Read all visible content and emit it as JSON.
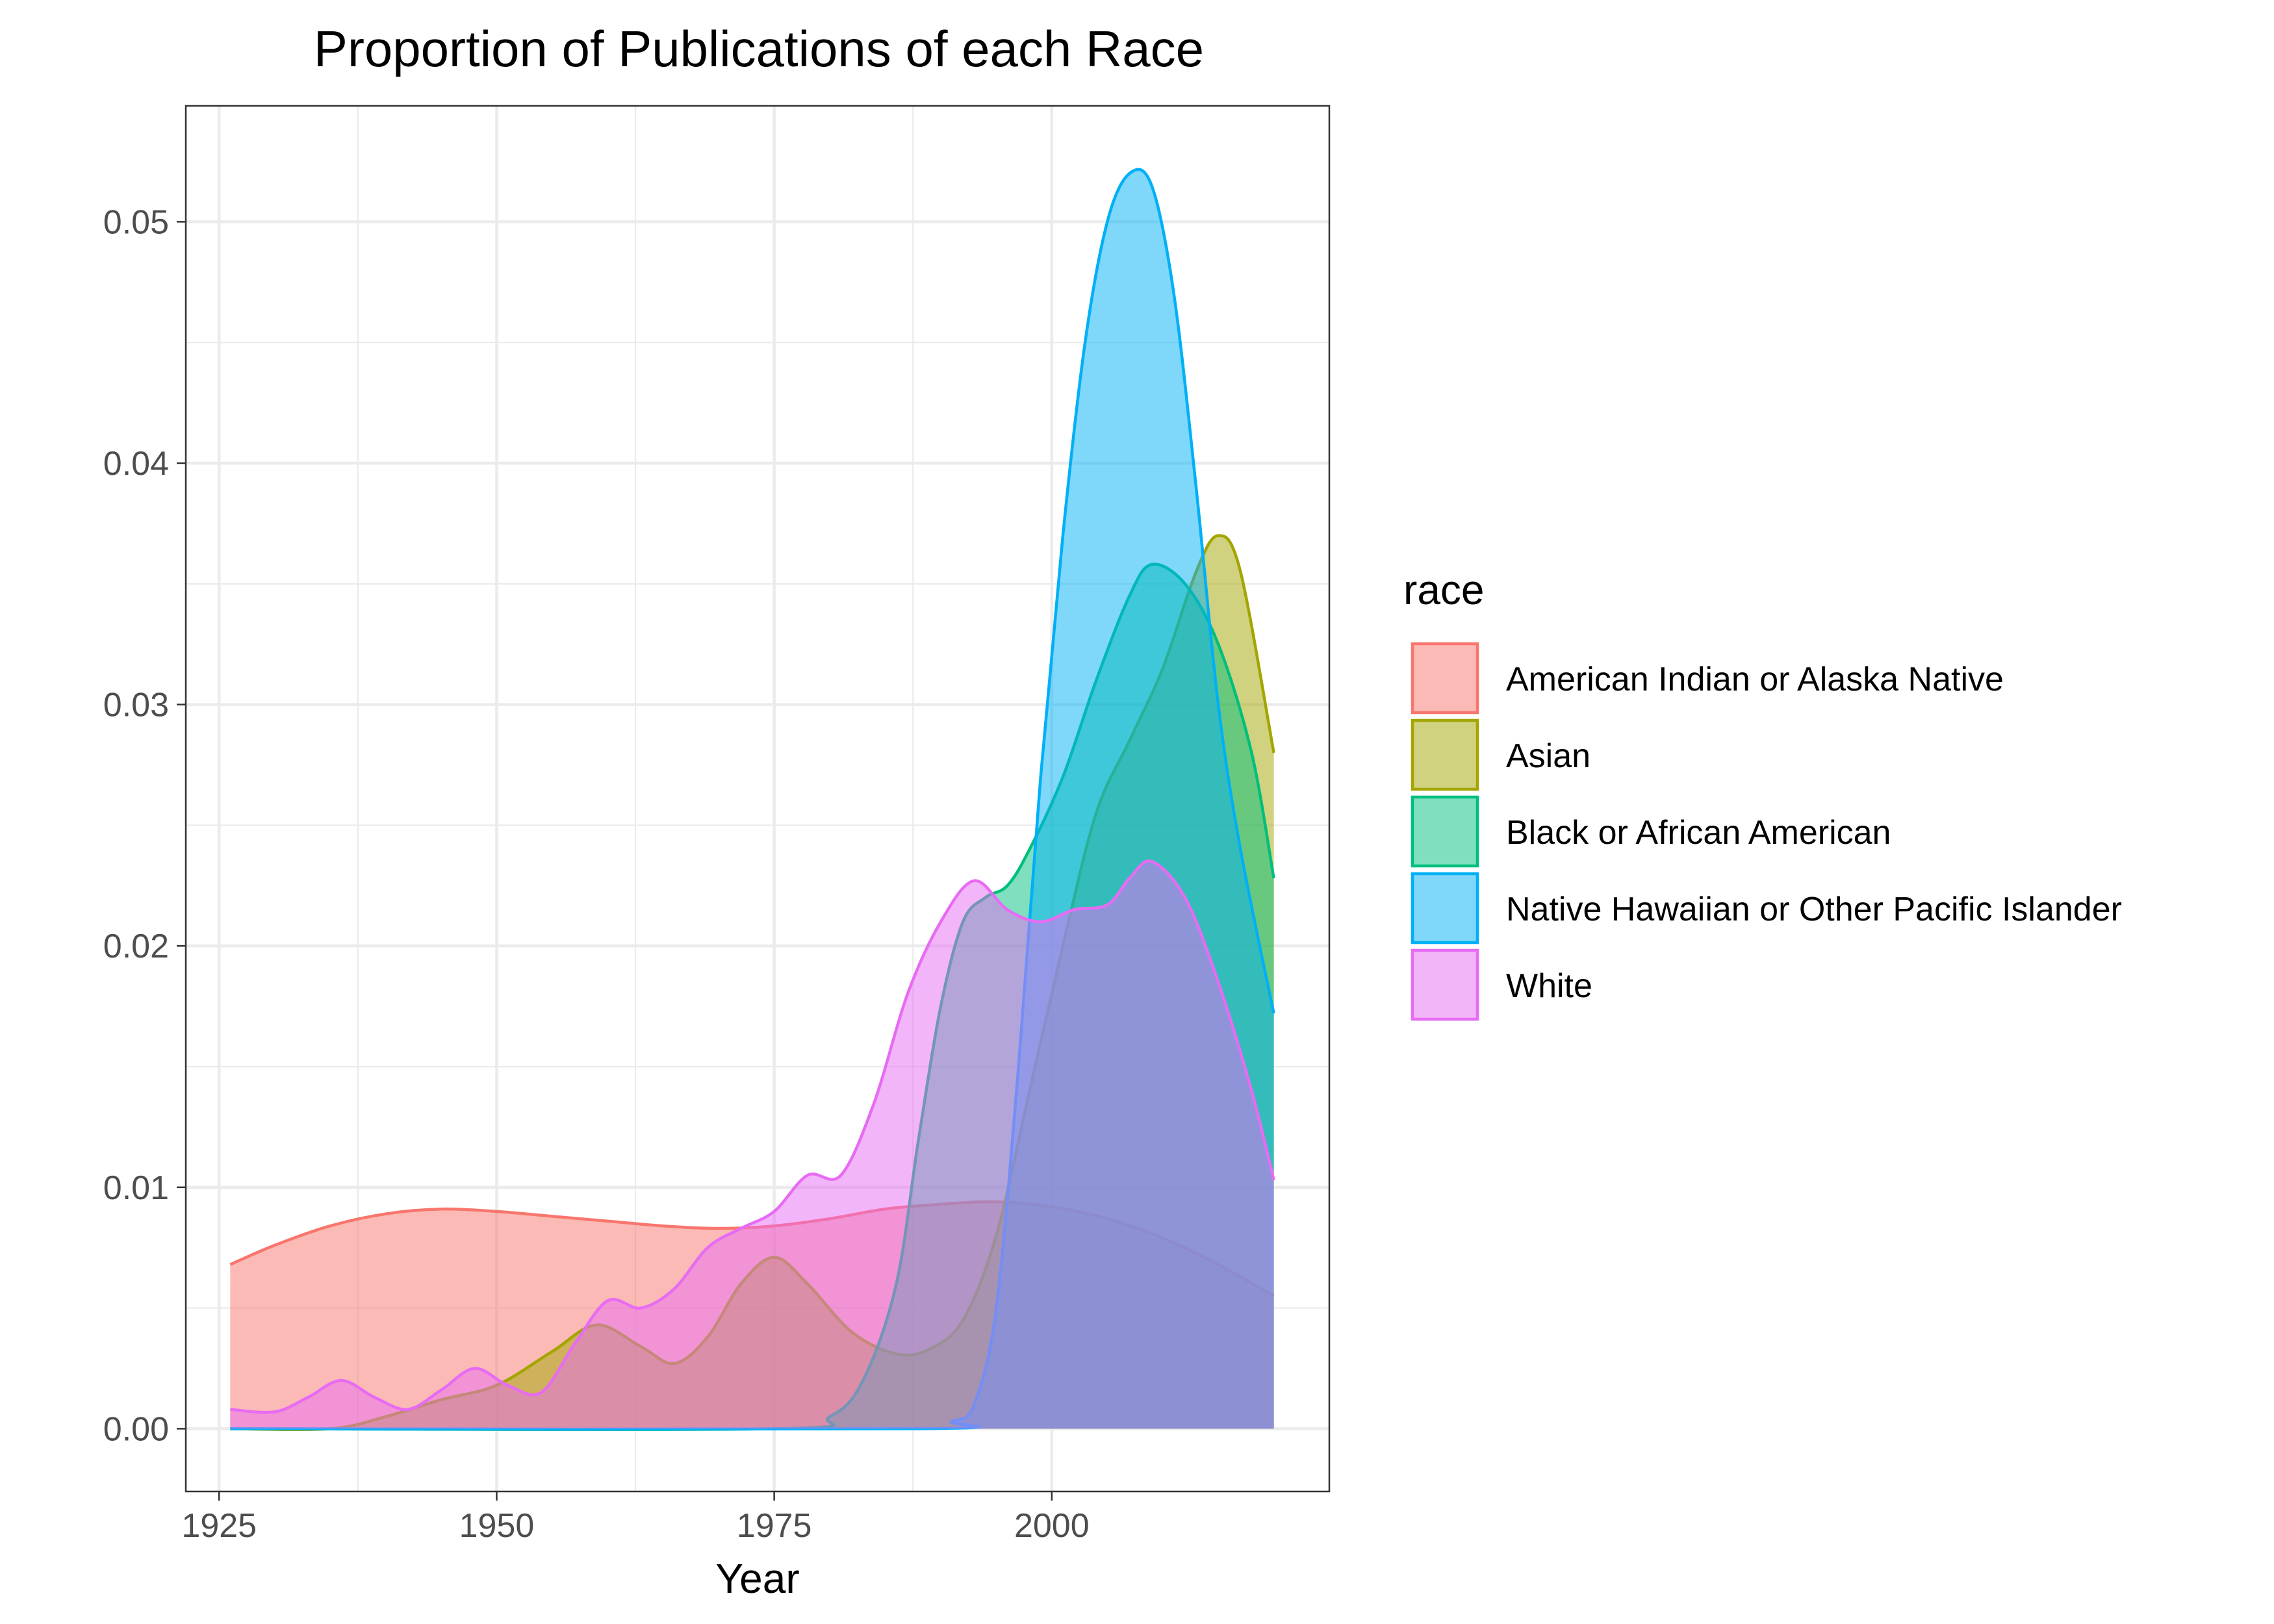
{
  "chart_data": {
    "type": "area",
    "title": "Proportion of Publications of each Race",
    "xlabel": "Year",
    "ylabel": "",
    "xlim": [
      1922,
      2025
    ],
    "ylim": [
      -0.0026,
      0.0548
    ],
    "x_ticks": [
      1925,
      1950,
      1975,
      2000
    ],
    "y_ticks": [
      0.0,
      0.01,
      0.02,
      0.03,
      0.04,
      0.05
    ],
    "y_tick_labels": [
      "0.00",
      "0.01",
      "0.02",
      "0.03",
      "0.04",
      "0.05"
    ],
    "grid": true,
    "legend": {
      "title": "race",
      "position": "right"
    },
    "series": [
      {
        "name": "American Indian or Alaska Native",
        "color": "#F8766D",
        "points": [
          [
            1926,
            0.0068
          ],
          [
            1930,
            0.0076
          ],
          [
            1935,
            0.0084
          ],
          [
            1940,
            0.0089
          ],
          [
            1945,
            0.0091
          ],
          [
            1950,
            0.009
          ],
          [
            1955,
            0.0088
          ],
          [
            1960,
            0.0086
          ],
          [
            1965,
            0.0084
          ],
          [
            1970,
            0.0083
          ],
          [
            1975,
            0.0084
          ],
          [
            1980,
            0.0087
          ],
          [
            1985,
            0.0091
          ],
          [
            1990,
            0.0093
          ],
          [
            1995,
            0.0094
          ],
          [
            2000,
            0.0092
          ],
          [
            2005,
            0.0087
          ],
          [
            2010,
            0.0079
          ],
          [
            2015,
            0.0068
          ],
          [
            2020,
            0.0055
          ]
        ]
      },
      {
        "name": "Asian",
        "color": "#A3A500",
        "points": [
          [
            1926,
            0.0
          ],
          [
            1935,
            0.0
          ],
          [
            1940,
            0.0005
          ],
          [
            1945,
            0.0012
          ],
          [
            1950,
            0.0018
          ],
          [
            1955,
            0.0032
          ],
          [
            1959,
            0.0043
          ],
          [
            1963,
            0.0034
          ],
          [
            1966,
            0.0027
          ],
          [
            1969,
            0.0038
          ],
          [
            1972,
            0.006
          ],
          [
            1975,
            0.0071
          ],
          [
            1978,
            0.006
          ],
          [
            1982,
            0.004
          ],
          [
            1986,
            0.0031
          ],
          [
            1989,
            0.0033
          ],
          [
            1992,
            0.0045
          ],
          [
            1995,
            0.008
          ],
          [
            1998,
            0.014
          ],
          [
            2001,
            0.02
          ],
          [
            2004,
            0.0255
          ],
          [
            2007,
            0.0285
          ],
          [
            2010,
            0.0315
          ],
          [
            2013,
            0.0355
          ],
          [
            2015,
            0.037
          ],
          [
            2017,
            0.0355
          ],
          [
            2020,
            0.028
          ]
        ]
      },
      {
        "name": "Black or African American",
        "color": "#00BF7D",
        "points": [
          [
            1926,
            0.0
          ],
          [
            1975,
            0.0
          ],
          [
            1980,
            0.0005
          ],
          [
            1983,
            0.002
          ],
          [
            1986,
            0.006
          ],
          [
            1988,
            0.012
          ],
          [
            1990,
            0.0175
          ],
          [
            1992,
            0.021
          ],
          [
            1994,
            0.022
          ],
          [
            1996,
            0.0225
          ],
          [
            1998,
            0.024
          ],
          [
            2001,
            0.027
          ],
          [
            2004,
            0.031
          ],
          [
            2007,
            0.0345
          ],
          [
            2009,
            0.0358
          ],
          [
            2012,
            0.035
          ],
          [
            2015,
            0.0325
          ],
          [
            2018,
            0.028
          ],
          [
            2020,
            0.0228
          ]
        ]
      },
      {
        "name": "Native Hawaiian or Other Pacific Islander",
        "color": "#00B0F6",
        "points": [
          [
            1926,
            0.0
          ],
          [
            1988,
            0.0
          ],
          [
            1991,
            0.0003
          ],
          [
            1993,
            0.001
          ],
          [
            1995,
            0.005
          ],
          [
            1997,
            0.015
          ],
          [
            1999,
            0.027
          ],
          [
            2001,
            0.037
          ],
          [
            2003,
            0.045
          ],
          [
            2005,
            0.05
          ],
          [
            2007,
            0.052
          ],
          [
            2009,
            0.0515
          ],
          [
            2011,
            0.047
          ],
          [
            2013,
            0.039
          ],
          [
            2015,
            0.03
          ],
          [
            2017,
            0.024
          ],
          [
            2020,
            0.0172
          ]
        ]
      },
      {
        "name": "White",
        "color": "#E76BF3",
        "points": [
          [
            1926,
            0.0008
          ],
          [
            1930,
            0.0007
          ],
          [
            1933,
            0.0013
          ],
          [
            1936,
            0.002
          ],
          [
            1939,
            0.0013
          ],
          [
            1942,
            0.0008
          ],
          [
            1945,
            0.0016
          ],
          [
            1948,
            0.0025
          ],
          [
            1951,
            0.0018
          ],
          [
            1954,
            0.0015
          ],
          [
            1957,
            0.0035
          ],
          [
            1960,
            0.0053
          ],
          [
            1963,
            0.005
          ],
          [
            1966,
            0.0058
          ],
          [
            1969,
            0.0075
          ],
          [
            1972,
            0.0083
          ],
          [
            1975,
            0.009
          ],
          [
            1978,
            0.0105
          ],
          [
            1981,
            0.0105
          ],
          [
            1984,
            0.0135
          ],
          [
            1987,
            0.018
          ],
          [
            1990,
            0.021
          ],
          [
            1993,
            0.0227
          ],
          [
            1996,
            0.0215
          ],
          [
            1999,
            0.021
          ],
          [
            2002,
            0.0215
          ],
          [
            2005,
            0.0217
          ],
          [
            2007,
            0.0228
          ],
          [
            2009,
            0.0235
          ],
          [
            2012,
            0.022
          ],
          [
            2015,
            0.0185
          ],
          [
            2018,
            0.014
          ],
          [
            2020,
            0.0103
          ]
        ]
      }
    ]
  }
}
